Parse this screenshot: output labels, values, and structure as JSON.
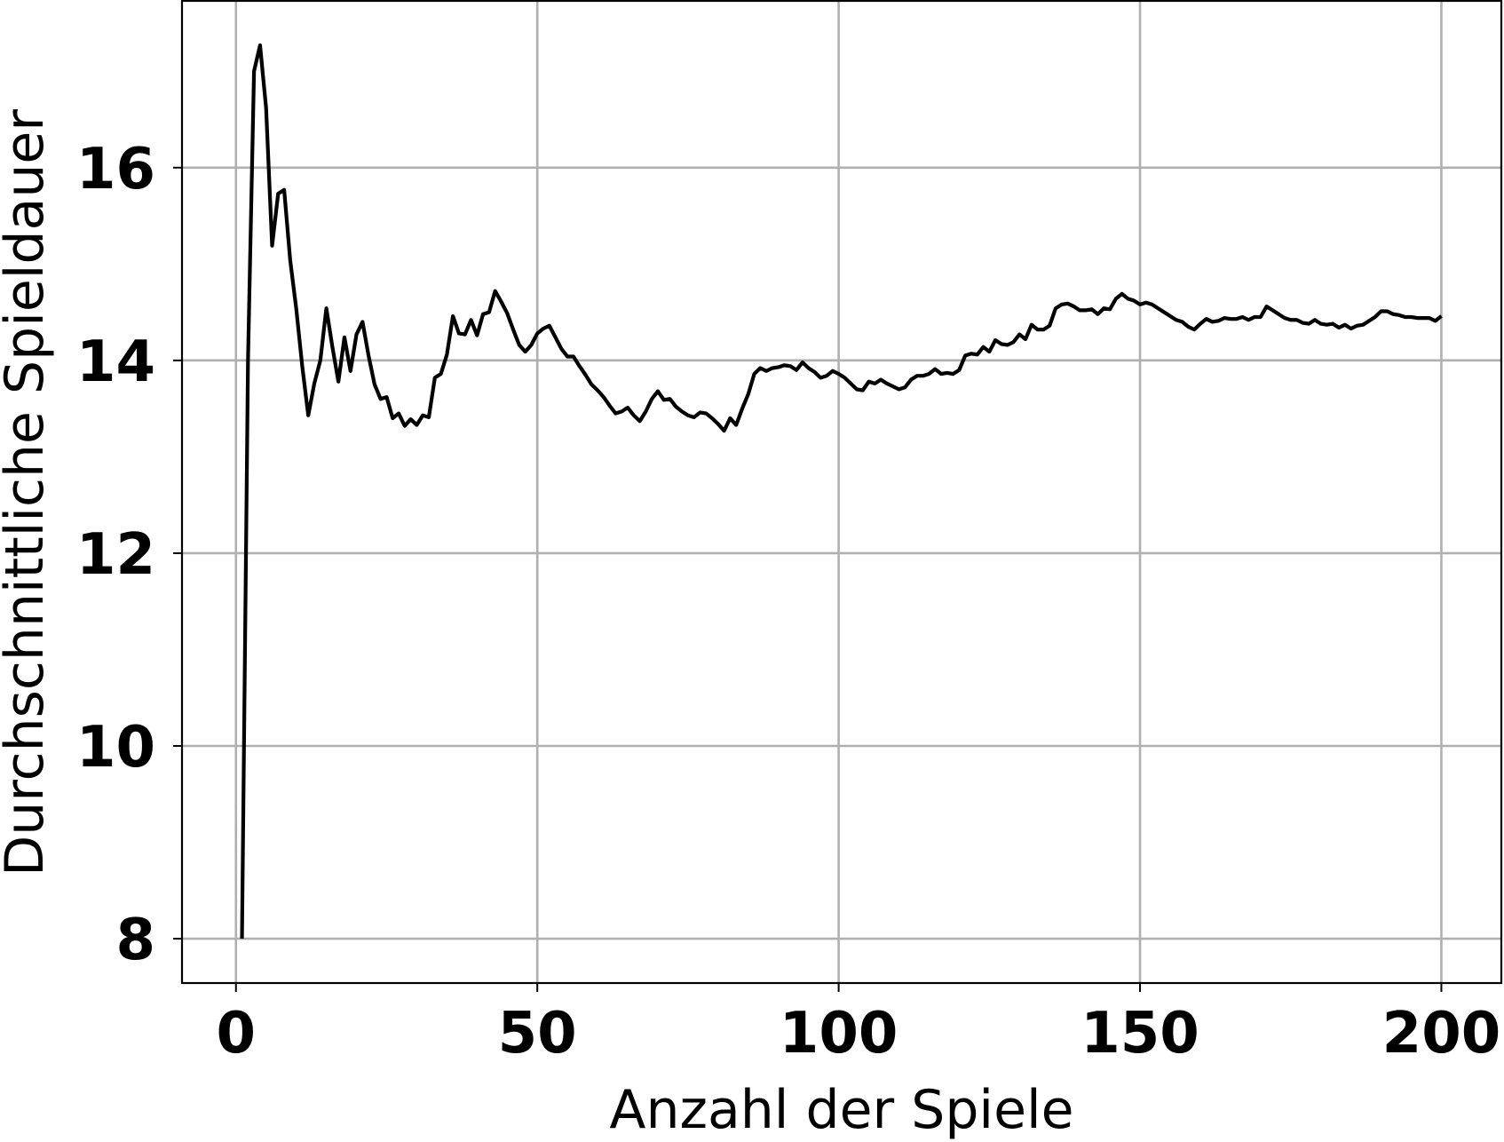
{
  "chart_data": {
    "type": "line",
    "xlabel": "Anzahl der Spiele",
    "ylabel": "Durchschnittliche Spieldauer",
    "x": [
      1,
      2,
      3,
      4,
      5,
      6,
      7,
      8,
      9,
      10,
      11,
      12,
      13,
      14,
      15,
      16,
      17,
      18,
      19,
      20,
      21,
      22,
      23,
      24,
      25,
      26,
      27,
      28,
      29,
      30,
      31,
      32,
      33,
      34,
      35,
      36,
      37,
      38,
      39,
      40,
      41,
      42,
      43,
      44,
      45,
      46,
      47,
      48,
      49,
      50,
      51,
      52,
      53,
      54,
      55,
      56,
      57,
      58,
      59,
      60,
      61,
      62,
      63,
      64,
      65,
      66,
      67,
      68,
      69,
      70,
      71,
      72,
      73,
      74,
      75,
      76,
      77,
      78,
      79,
      80,
      81,
      82,
      83,
      84,
      85,
      86,
      87,
      88,
      89,
      90,
      91,
      92,
      93,
      94,
      95,
      96,
      97,
      98,
      99,
      100,
      101,
      102,
      103,
      104,
      105,
      106,
      107,
      108,
      109,
      110,
      111,
      112,
      113,
      114,
      115,
      116,
      117,
      118,
      119,
      120,
      121,
      122,
      123,
      124,
      125,
      126,
      127,
      128,
      129,
      130,
      131,
      132,
      133,
      134,
      135,
      136,
      137,
      138,
      139,
      140,
      141,
      142,
      143,
      144,
      145,
      146,
      147,
      148,
      149,
      150,
      151,
      152,
      153,
      154,
      155,
      156,
      157,
      158,
      159,
      160,
      161,
      162,
      163,
      164,
      165,
      166,
      167,
      168,
      169,
      170,
      171,
      172,
      173,
      174,
      175,
      176,
      177,
      178,
      179,
      180,
      181,
      182,
      183,
      184,
      185,
      186,
      187,
      188,
      189,
      190,
      191,
      192,
      193,
      194,
      195,
      196,
      197,
      198,
      199,
      200
    ],
    "series": [
      {
        "color": "#000000",
        "values": [
          8,
          14,
          17.0,
          17.27,
          16.62,
          15.19,
          15.73,
          15.77,
          15.04,
          14.54,
          13.94,
          13.43,
          13.76,
          14.0,
          14.54,
          14.14,
          13.78,
          14.24,
          13.89,
          14.27,
          14.4,
          14.05,
          13.75,
          13.6,
          13.62,
          13.4,
          13.45,
          13.32,
          13.39,
          13.33,
          13.43,
          13.41,
          13.82,
          13.86,
          14.06,
          14.46,
          14.28,
          14.27,
          14.42,
          14.26,
          14.48,
          14.5,
          14.72,
          14.61,
          14.49,
          14.32,
          14.16,
          14.09,
          14.16,
          14.28,
          14.33,
          14.36,
          14.24,
          14.12,
          14.04,
          14.04,
          13.94,
          13.85,
          13.75,
          13.69,
          13.62,
          13.53,
          13.45,
          13.47,
          13.51,
          13.43,
          13.37,
          13.47,
          13.6,
          13.68,
          13.59,
          13.6,
          13.52,
          13.47,
          13.43,
          13.41,
          13.46,
          13.45,
          13.4,
          13.34,
          13.27,
          13.4,
          13.33,
          13.5,
          13.65,
          13.86,
          13.92,
          13.89,
          13.92,
          13.93,
          13.95,
          13.94,
          13.9,
          13.98,
          13.92,
          13.88,
          13.82,
          13.84,
          13.89,
          13.86,
          13.82,
          13.76,
          13.7,
          13.69,
          13.78,
          13.76,
          13.8,
          13.76,
          13.73,
          13.7,
          13.72,
          13.8,
          13.84,
          13.84,
          13.86,
          13.91,
          13.86,
          13.87,
          13.86,
          13.9,
          14.05,
          14.07,
          14.06,
          14.14,
          14.09,
          14.21,
          14.17,
          14.16,
          14.19,
          14.27,
          14.22,
          14.37,
          14.32,
          14.32,
          14.36,
          14.54,
          14.58,
          14.59,
          14.56,
          14.52,
          14.52,
          14.53,
          14.48,
          14.54,
          14.53,
          14.64,
          14.69,
          14.64,
          14.62,
          14.58,
          14.6,
          14.58,
          14.54,
          14.5,
          14.46,
          14.42,
          14.4,
          14.35,
          14.32,
          14.38,
          14.43,
          14.4,
          14.41,
          14.44,
          14.43,
          14.43,
          14.45,
          14.42,
          14.45,
          14.45,
          14.56,
          14.52,
          14.48,
          14.44,
          14.42,
          14.42,
          14.39,
          14.38,
          14.42,
          14.38,
          14.37,
          14.38,
          14.34,
          14.37,
          14.33,
          14.36,
          14.37,
          14.41,
          14.45,
          14.51,
          14.51,
          14.48,
          14.47,
          14.45,
          14.45,
          14.44,
          14.44,
          14.44,
          14.41,
          14.46
        ]
      }
    ],
    "xlim": [
      -8.95,
      209.95
    ],
    "ylim": [
      7.54,
      17.73
    ],
    "xticks": [
      0,
      50,
      100,
      150,
      200
    ],
    "yticks": [
      8,
      10,
      12,
      14,
      16
    ],
    "grid": true,
    "grid_color": "#b0b0b0"
  }
}
